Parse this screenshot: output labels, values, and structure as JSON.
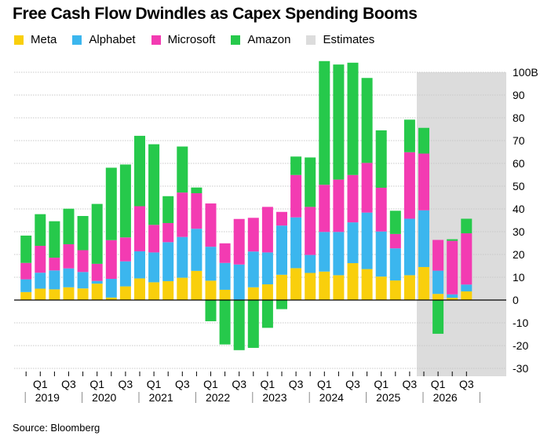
{
  "title": "Free Cash Flow Dwindles as Capex Spending Booms",
  "source": "Source: Bloomberg",
  "legend": [
    {
      "label": "Meta",
      "color": "#f9cf0c"
    },
    {
      "label": "Alphabet",
      "color": "#3bb6ee"
    },
    {
      "label": "Microsoft",
      "color": "#f33bb2"
    },
    {
      "label": "Amazon",
      "color": "#26c94b"
    },
    {
      "label": "Estimates",
      "color": "#dcdcdc"
    }
  ],
  "chart_data": {
    "type": "bar",
    "stacked": true,
    "title": "Free Cash Flow Dwindles as Capex Spending Booms",
    "y_axis_side": "right",
    "ylim": [
      -30,
      100
    ],
    "y_ticks": [
      -30,
      -20,
      -10,
      0,
      10,
      20,
      30,
      40,
      50,
      60,
      70,
      80,
      90,
      100
    ],
    "y_tick_labels": [
      "-30",
      "-20",
      "-10",
      "0",
      "10",
      "20",
      "30",
      "40",
      "50",
      "60",
      "70",
      "80",
      "90",
      "100B"
    ],
    "categories": [
      "2019Q1",
      "2019Q2",
      "2019Q3",
      "2019Q4",
      "2020Q1",
      "2020Q2",
      "2020Q3",
      "2020Q4",
      "2021Q1",
      "2021Q2",
      "2021Q3",
      "2021Q4",
      "2022Q1",
      "2022Q2",
      "2022Q3",
      "2022Q4",
      "2023Q1",
      "2023Q2",
      "2023Q3",
      "2023Q4",
      "2024Q1",
      "2024Q2",
      "2024Q3",
      "2024Q4",
      "2025Q1",
      "2025Q2",
      "2025Q3",
      "2025Q4",
      "2026Q1",
      "2026Q2",
      "2026Q3",
      "2026Q4"
    ],
    "x_quarter_labels": [
      {
        "index": 1,
        "text": "Q1"
      },
      {
        "index": 3,
        "text": "Q3"
      },
      {
        "index": 5,
        "text": "Q1"
      },
      {
        "index": 7,
        "text": "Q3"
      },
      {
        "index": 9,
        "text": "Q1"
      },
      {
        "index": 11,
        "text": "Q3"
      },
      {
        "index": 13,
        "text": "Q1"
      },
      {
        "index": 15,
        "text": "Q3"
      },
      {
        "index": 17,
        "text": "Q1"
      },
      {
        "index": 19,
        "text": "Q3"
      },
      {
        "index": 21,
        "text": "Q1"
      },
      {
        "index": 23,
        "text": "Q3"
      },
      {
        "index": 25,
        "text": "Q1"
      },
      {
        "index": 27,
        "text": "Q3"
      },
      {
        "index": 29,
        "text": "Q1"
      },
      {
        "index": 31,
        "text": "Q3"
      }
    ],
    "years": [
      "2019",
      "2020",
      "2021",
      "2022",
      "2023",
      "2024",
      "2025",
      "2026"
    ],
    "estimates_start_index": 28,
    "series": [
      {
        "name": "Meta",
        "color": "#f9cf0c",
        "values": [
          3.5,
          5.0,
          4.7,
          5.6,
          5.1,
          7.2,
          1.1,
          6.0,
          9.5,
          7.8,
          8.3,
          9.8,
          12.8,
          8.5,
          4.5,
          0.2,
          5.6,
          6.9,
          11.1,
          14.0,
          11.9,
          12.5,
          10.9,
          16.2,
          13.6,
          10.3,
          8.6,
          10.9,
          14.5,
          2.7,
          1.0,
          3.8
        ]
      },
      {
        "name": "Alphabet",
        "color": "#3bb6ee",
        "values": [
          5.6,
          7.0,
          8.3,
          8.3,
          7.2,
          1.2,
          8.2,
          11.0,
          11.9,
          13.1,
          17.1,
          17.9,
          18.5,
          14.9,
          11.8,
          15.4,
          15.7,
          14.0,
          21.6,
          22.3,
          7.9,
          17.4,
          19.0,
          17.9,
          24.8,
          19.8,
          14.1,
          24.8,
          24.9,
          10.2,
          1.5,
          3.0
        ]
      },
      {
        "name": "Microsoft",
        "color": "#f33bb2",
        "values": [
          7.2,
          11.8,
          5.6,
          10.6,
          9.6,
          7.5,
          17.0,
          10.5,
          19.8,
          12.1,
          8.4,
          19.5,
          15.6,
          19.0,
          8.6,
          20.0,
          14.8,
          20.0,
          6.0,
          18.6,
          21.1,
          20.7,
          23.0,
          20.8,
          21.8,
          19.2,
          6.3,
          29.2,
          24.9,
          13.5,
          23.5,
          22.5
        ]
      },
      {
        "name": "Amazon",
        "color": "#26c94b",
        "values": [
          12.0,
          13.9,
          16.0,
          15.6,
          15.0,
          26.3,
          31.8,
          32.0,
          30.9,
          35.4,
          11.8,
          20.2,
          2.5,
          -9.3,
          -19.5,
          -22.0,
          -21.0,
          -12.2,
          -4.0,
          8.1,
          21.7,
          54.3,
          50.5,
          49.3,
          37.3,
          25.2,
          10.2,
          14.3,
          11.3,
          -14.8,
          0.7,
          6.4
        ]
      }
    ]
  }
}
